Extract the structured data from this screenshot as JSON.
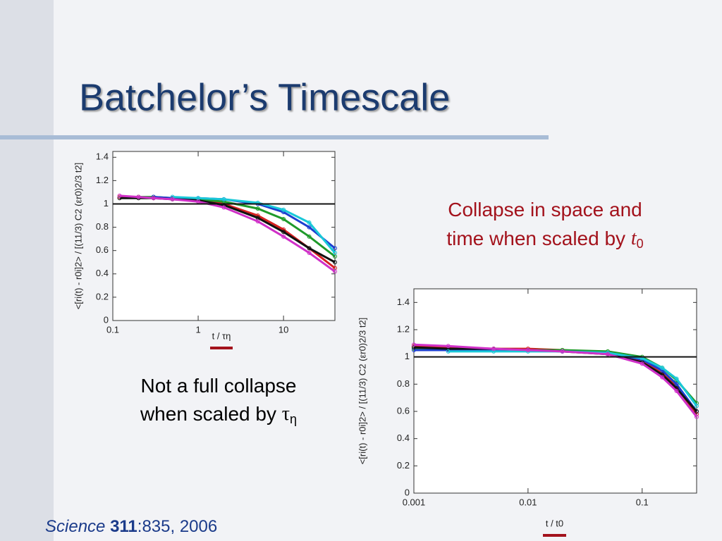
{
  "title": "Batchelor’s Timescale",
  "chart_data": [
    {
      "type": "line",
      "y_label": "<[ri(t) - r0i]2> / [(11/3) C2 (εr0)2/3 t2]",
      "x_label": "t / τη",
      "xlog": true,
      "xlim": [
        0.1,
        40
      ],
      "xticks": [
        0.1,
        1,
        10
      ],
      "ylim": [
        0,
        1.45
      ],
      "yticks": [
        0,
        0.2,
        0.4,
        0.6,
        0.8,
        1,
        1.2,
        1.4
      ],
      "hline": 1,
      "x": [
        0.12,
        0.2,
        0.3,
        0.5,
        1,
        2,
        5,
        10,
        20,
        40
      ],
      "series": [
        {
          "color": "#d62020",
          "values": [
            1.06,
            1.06,
            1.05,
            1.05,
            1.04,
            1.0,
            0.9,
            0.78,
            0.62,
            0.45
          ]
        },
        {
          "color": "#1f9a2a",
          "values": [
            null,
            1.06,
            1.06,
            1.05,
            1.04,
            1.02,
            0.96,
            0.87,
            0.72,
            0.55
          ]
        },
        {
          "color": "#1c3fd0",
          "values": [
            null,
            null,
            1.06,
            1.05,
            1.05,
            1.04,
            1.0,
            0.93,
            0.8,
            0.62
          ]
        },
        {
          "color": "#111111",
          "values": [
            1.05,
            1.05,
            1.05,
            1.04,
            1.03,
            0.99,
            0.88,
            0.76,
            0.62,
            0.5
          ]
        },
        {
          "color": "#19c8d8",
          "values": [
            null,
            null,
            null,
            1.06,
            1.05,
            1.04,
            1.01,
            0.95,
            0.84,
            0.58
          ]
        },
        {
          "color": "#d030c8",
          "values": [
            1.07,
            1.06,
            1.05,
            1.04,
            1.02,
            0.97,
            0.85,
            0.72,
            0.58,
            0.42
          ]
        }
      ]
    },
    {
      "type": "line",
      "y_label": "<[ri(t) - r0i]2> / [(11/3) C2 (εr0)2/3 t2]",
      "x_label": "t / t0",
      "xlog": true,
      "xlim": [
        0.001,
        0.3
      ],
      "xticks": [
        0.001,
        0.01,
        0.1
      ],
      "ylim": [
        0,
        1.5
      ],
      "yticks": [
        0,
        0.2,
        0.4,
        0.6,
        0.8,
        1,
        1.2,
        1.4
      ],
      "hline": 1,
      "x": [
        0.001,
        0.002,
        0.005,
        0.01,
        0.02,
        0.05,
        0.1,
        0.15,
        0.2,
        0.3
      ],
      "series": [
        {
          "color": "#d62020",
          "values": [
            1.08,
            1.07,
            1.06,
            1.06,
            1.05,
            1.03,
            0.97,
            0.88,
            0.78,
            0.58
          ]
        },
        {
          "color": "#1f9a2a",
          "values": [
            1.06,
            1.06,
            1.05,
            1.05,
            1.05,
            1.04,
            1.0,
            0.92,
            0.83,
            0.66
          ]
        },
        {
          "color": "#1c3fd0",
          "values": [
            1.05,
            1.05,
            1.05,
            1.05,
            1.04,
            1.03,
            0.98,
            0.9,
            0.8,
            0.6
          ]
        },
        {
          "color": "#111111",
          "values": [
            1.07,
            1.06,
            1.06,
            1.05,
            1.04,
            1.02,
            0.96,
            0.87,
            0.77,
            0.6
          ]
        },
        {
          "color": "#19c8d8",
          "values": [
            null,
            1.04,
            1.04,
            1.04,
            1.04,
            1.03,
            0.99,
            0.92,
            0.84,
            0.64
          ]
        },
        {
          "color": "#d030c8",
          "values": [
            1.09,
            1.08,
            1.06,
            1.05,
            1.04,
            1.02,
            0.95,
            0.85,
            0.75,
            0.56
          ]
        }
      ]
    }
  ],
  "caption_right": {
    "text": "Collapse in space and time when scaled by ",
    "symbol": "t",
    "subscript": "0"
  },
  "caption_left": {
    "text": "Not a full collapse when scaled by ",
    "symbol": "τ",
    "subscript": "η"
  },
  "citation": {
    "journal": "Science",
    "volume": "311",
    "rest": ":835, 2006"
  }
}
